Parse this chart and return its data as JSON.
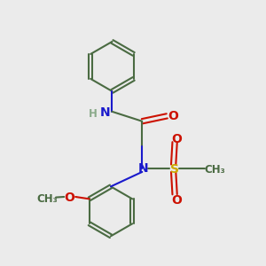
{
  "bg_color": "#ebebeb",
  "bond_color": "#4a6b42",
  "N_color": "#1a1acc",
  "O_color": "#cc1100",
  "S_color": "#ccaa00",
  "H_color": "#8aaa8a",
  "line_width": 1.5,
  "fig_size": [
    3.0,
    3.0
  ],
  "dpi": 100,
  "xlim": [
    0,
    10
  ],
  "ylim": [
    0,
    10
  ]
}
